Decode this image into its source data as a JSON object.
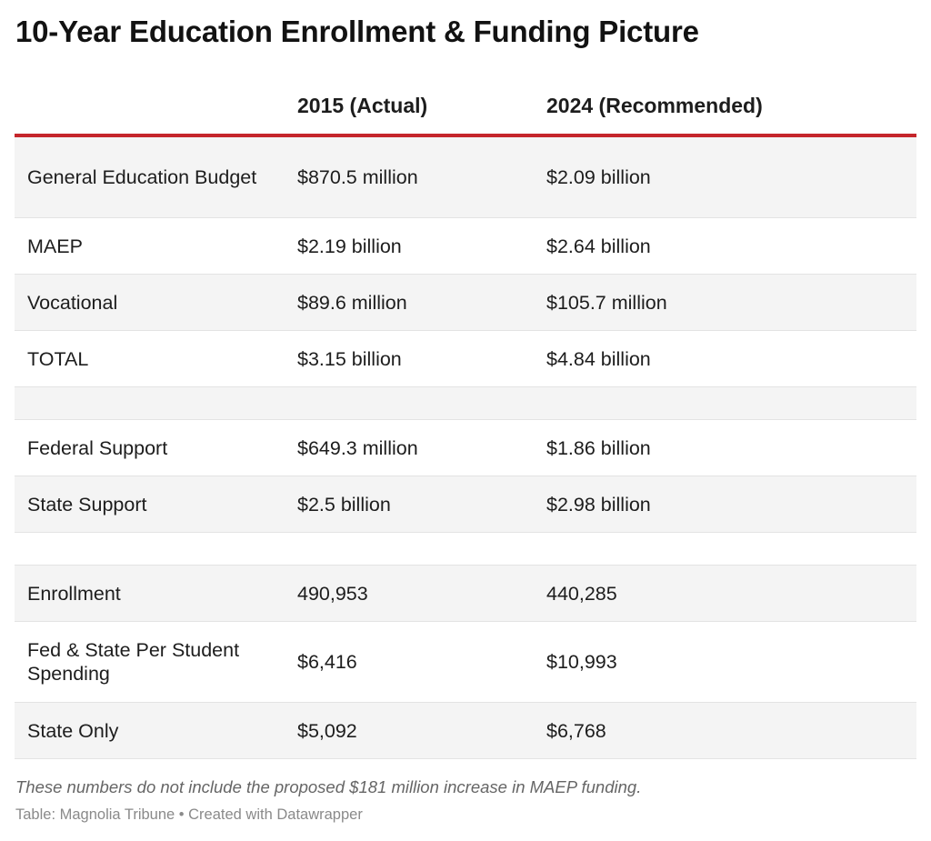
{
  "title": "10-Year Education Enrollment & Funding Picture",
  "chart_data": {
    "type": "table",
    "title": "10-Year Education Enrollment & Funding Picture",
    "columns": [
      "",
      "2015 (Actual)",
      "2024 (Recommended)"
    ],
    "rows": [
      [
        "General Education Budget",
        "$870.5 million",
        "$2.09 billion"
      ],
      [
        "MAEP",
        "$2.19 billion",
        "$2.64 billion"
      ],
      [
        "Vocational",
        "$89.6 million",
        "$105.7 million"
      ],
      [
        "TOTAL",
        "$3.15 billion",
        "$4.84 billion"
      ],
      [
        "",
        "",
        ""
      ],
      [
        "Federal Support",
        "$649.3 million",
        "$1.86 billion"
      ],
      [
        "State Support",
        "$2.5 billion",
        "$2.98 billion"
      ],
      [
        "",
        "",
        ""
      ],
      [
        "Enrollment",
        "490,953",
        "440,285"
      ],
      [
        "Fed & State Per Student Spending",
        "$6,416",
        "$10,993"
      ],
      [
        "State Only",
        "$5,092",
        "$6,768"
      ]
    ]
  },
  "footnote": "These numbers do not include the proposed $181 million increase in MAEP funding.",
  "source": "Table: Magnolia Tribune • Created with Datawrapper",
  "colors": {
    "header_rule": "#c5262b",
    "row_stripe": "#f4f4f4"
  }
}
